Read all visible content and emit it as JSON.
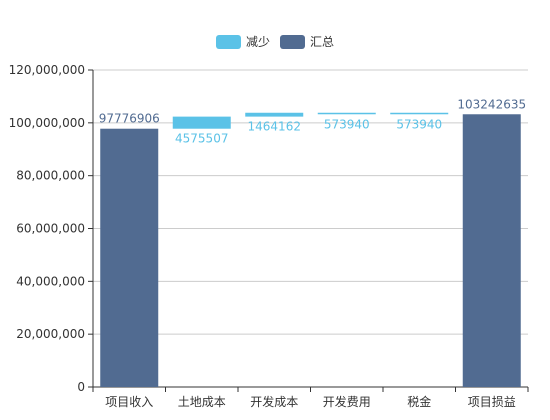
{
  "chart_data": {
    "type": "bar",
    "subtype": "waterfall",
    "categories": [
      "项目收入",
      "土地成本",
      "开发成本",
      "开发费用",
      "税金",
      "项目损益"
    ],
    "series": [
      {
        "name": "减少",
        "color": "#5bc2e7",
        "label_color": "#5bc2e7",
        "values": [
          null,
          4575507,
          1464162,
          573940,
          573940,
          null
        ],
        "base": [
          null,
          97776906,
          102352413,
          103242635,
          103242635,
          null
        ]
      },
      {
        "name": "汇总",
        "color": "#516b91",
        "label_color": "#516b91",
        "values": [
          97776906,
          null,
          null,
          null,
          null,
          103242635
        ]
      }
    ],
    "y_ticks": [
      "0",
      "20,000,000",
      "40,000,000",
      "60,000,000",
      "80,000,000",
      "100,000,000",
      "120,000,000"
    ],
    "ylim": [
      0,
      120000000
    ],
    "grid": true,
    "legend_position": "top-center"
  }
}
